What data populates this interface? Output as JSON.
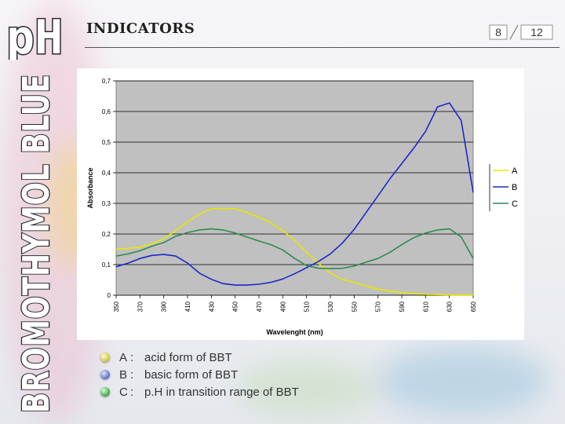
{
  "logo": {
    "text": "pH"
  },
  "side_title": "BROMOTHYMOL BLUE",
  "slide_title": "INDICATORS",
  "pager": {
    "current": "8",
    "total": "12"
  },
  "colors": {
    "series_A": "#e8e800",
    "series_B": "#1a28c8",
    "series_C": "#2e8b50",
    "plot_bg": "#c0c0c0",
    "bullet_A": "#c8c840",
    "bullet_B": "#5a70c8",
    "bullet_C": "#3aa84a"
  },
  "chart_data": {
    "type": "line",
    "xlabel": "Wavelenght (nm)",
    "ylabel": "Absorbance",
    "xlim": [
      350,
      650
    ],
    "ylim": [
      0,
      0.7
    ],
    "x_ticks": [
      "350",
      "370",
      "390",
      "410",
      "430",
      "450",
      "470",
      "490",
      "510",
      "530",
      "550",
      "570",
      "590",
      "610",
      "630",
      "650"
    ],
    "y_ticks": [
      "0",
      "0,1",
      "0,2",
      "0,3",
      "0,4",
      "0,5",
      "0,6",
      "0,7"
    ],
    "grid": "horizontal",
    "legend_position": "right",
    "x": [
      350,
      360,
      370,
      380,
      390,
      400,
      410,
      420,
      430,
      440,
      450,
      460,
      470,
      480,
      490,
      500,
      510,
      520,
      530,
      540,
      550,
      560,
      570,
      580,
      590,
      600,
      610,
      620,
      630,
      640,
      650
    ],
    "series": [
      {
        "name": "A",
        "values": [
          0.15,
          0.153,
          0.157,
          0.168,
          0.185,
          0.21,
          0.24,
          0.265,
          0.282,
          0.283,
          0.282,
          0.27,
          0.255,
          0.236,
          0.211,
          0.18,
          0.14,
          0.105,
          0.072,
          0.052,
          0.042,
          0.03,
          0.02,
          0.013,
          0.009,
          0.005,
          0.003,
          0.002,
          0.001,
          0.001,
          0.001
        ]
      },
      {
        "name": "B",
        "values": [
          0.093,
          0.105,
          0.12,
          0.13,
          0.133,
          0.128,
          0.105,
          0.072,
          0.052,
          0.038,
          0.033,
          0.033,
          0.036,
          0.042,
          0.053,
          0.07,
          0.09,
          0.11,
          0.135,
          0.17,
          0.215,
          0.27,
          0.325,
          0.38,
          0.43,
          0.48,
          0.535,
          0.615,
          0.628,
          0.57,
          0.335
        ]
      },
      {
        "name": "C",
        "values": [
          0.128,
          0.135,
          0.145,
          0.16,
          0.172,
          0.192,
          0.205,
          0.213,
          0.217,
          0.213,
          0.203,
          0.19,
          0.177,
          0.165,
          0.148,
          0.12,
          0.097,
          0.088,
          0.087,
          0.088,
          0.095,
          0.108,
          0.12,
          0.14,
          0.165,
          0.188,
          0.203,
          0.213,
          0.217,
          0.19,
          0.12
        ]
      }
    ]
  },
  "footnotes": [
    {
      "letter": "A",
      "text": "acid form of BBT"
    },
    {
      "letter": "B",
      "text": "basic form of BBT"
    },
    {
      "letter": "C",
      "text": "p.H in transition range of BBT"
    }
  ],
  "colon": ":"
}
